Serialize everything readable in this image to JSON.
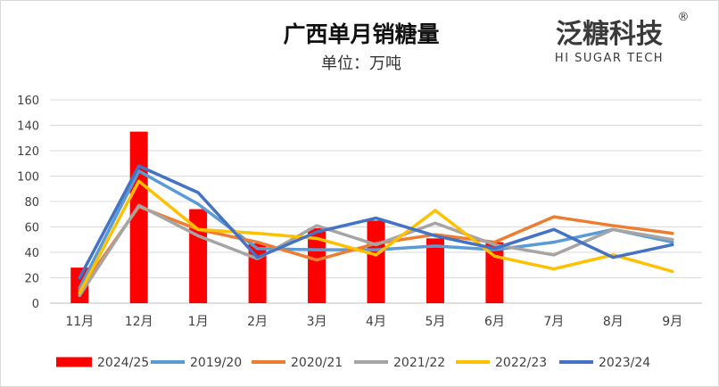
{
  "chart_data": {
    "type": "bar+line",
    "title": "广西单月销糖量",
    "subtitle": "单位：万吨",
    "brand": {
      "name": "泛糖科技",
      "tagline": "HI SUGAR TECH",
      "registered": "®"
    },
    "categories": [
      "11月",
      "12月",
      "1月",
      "2月",
      "3月",
      "4月",
      "5月",
      "6月",
      "7月",
      "8月",
      "9月"
    ],
    "ylim": [
      0,
      160
    ],
    "yticks": [
      "0",
      "20",
      "40",
      "60",
      "80",
      "100",
      "120",
      "140",
      "160"
    ],
    "grid": true,
    "legend_position": "bottom",
    "series": [
      {
        "name": "2024/25",
        "type": "bar",
        "color": "#ff0000",
        "values": [
          28,
          135,
          74,
          47,
          59,
          65,
          51,
          48,
          null,
          null,
          null
        ]
      },
      {
        "name": "2019/20",
        "type": "line",
        "color": "#5b9bd5",
        "values": [
          12,
          104,
          78,
          43,
          42,
          42,
          45,
          42,
          48,
          58,
          48
        ]
      },
      {
        "name": "2020/21",
        "type": "line",
        "color": "#ed7d31",
        "values": [
          10,
          76,
          58,
          48,
          34,
          47,
          54,
          48,
          68,
          61,
          55
        ]
      },
      {
        "name": "2021/22",
        "type": "line",
        "color": "#a5a5a5",
        "values": [
          6,
          77,
          53,
          35,
          61,
          46,
          63,
          46,
          38,
          58,
          50
        ]
      },
      {
        "name": "2022/23",
        "type": "line",
        "color": "#ffc000",
        "values": [
          8,
          96,
          58,
          55,
          51,
          38,
          73,
          37,
          27,
          38,
          25
        ]
      },
      {
        "name": "2023/24",
        "type": "line",
        "color": "#4472c4",
        "values": [
          20,
          108,
          87,
          36,
          56,
          67,
          53,
          43,
          58,
          36,
          46
        ]
      }
    ]
  }
}
